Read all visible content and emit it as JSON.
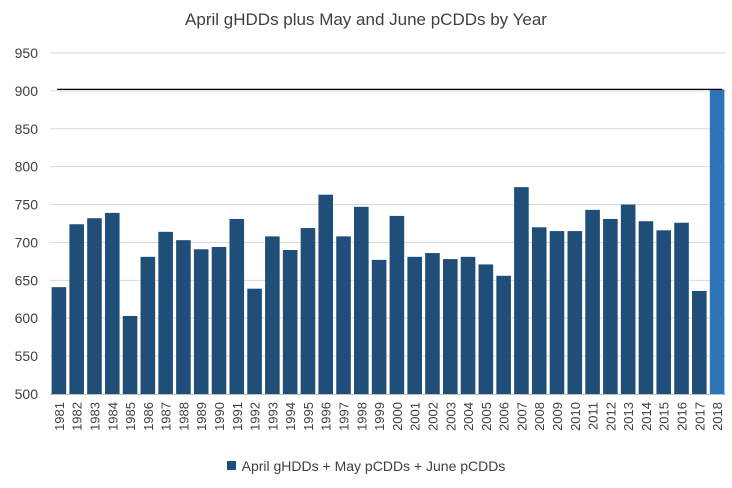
{
  "chart_data": {
    "type": "bar",
    "title": "April gHDDs plus May and June pCDDs by Year",
    "xlabel": "",
    "ylabel": "",
    "ylim": [
      500,
      950
    ],
    "yticks": [
      500,
      550,
      600,
      650,
      700,
      750,
      800,
      850,
      900,
      950
    ],
    "grid": true,
    "legend_position": "bottom",
    "reference_line": 902,
    "categories": [
      "1981",
      "1982",
      "1983",
      "1984",
      "1985",
      "1986",
      "1987",
      "1988",
      "1989",
      "1990",
      "1991",
      "1992",
      "1993",
      "1994",
      "1995",
      "1996",
      "1997",
      "1998",
      "1999",
      "2000",
      "2001",
      "2002",
      "2003",
      "2004",
      "2005",
      "2006",
      "2007",
      "2008",
      "2009",
      "2010",
      "2011",
      "2012",
      "2013",
      "2014",
      "2015",
      "2016",
      "2017",
      "2018"
    ],
    "series": [
      {
        "name": "April gHDDs + May pCDDs + June pCDDs",
        "color": "#1f4e79",
        "highlight_color": "#2e75b6",
        "highlight_category": "2018",
        "values": [
          641,
          724,
          732,
          739,
          603,
          681,
          714,
          703,
          691,
          694,
          731,
          639,
          708,
          690,
          719,
          763,
          708,
          747,
          677,
          735,
          681,
          686,
          678,
          681,
          671,
          656,
          773,
          720,
          715,
          715,
          743,
          731,
          750,
          728,
          716,
          726,
          636,
          902
        ]
      }
    ]
  }
}
